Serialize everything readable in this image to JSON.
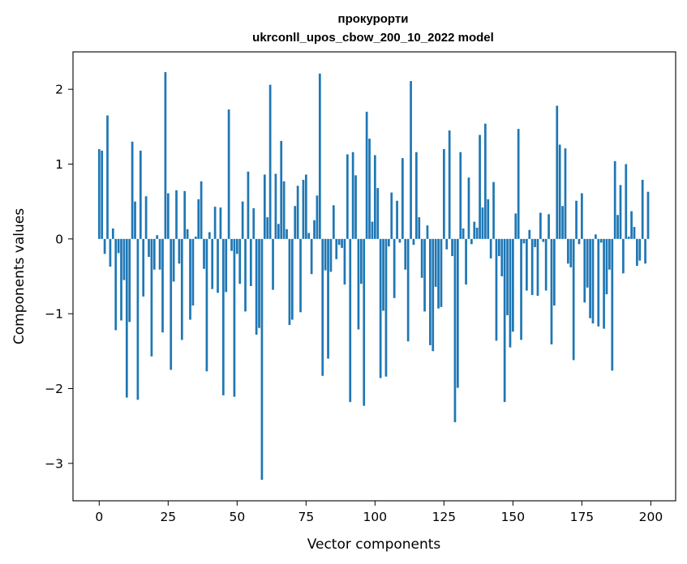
{
  "chart_data": {
    "type": "bar",
    "title": "прокурорти",
    "subtitle": "ukrconll_upos_cbow_200_10_2022 model",
    "xlabel": "Vector components",
    "ylabel": "Components values",
    "xlim": [
      -9.5,
      209
    ],
    "ylim": [
      -3.5,
      2.5
    ],
    "xticks": [
      0,
      25,
      50,
      75,
      100,
      125,
      150,
      175,
      200
    ],
    "yticks": [
      -3,
      -2,
      -1,
      0,
      1,
      2
    ],
    "ytick_labels": [
      "−3",
      "−2",
      "−1",
      "0",
      "1",
      "2"
    ],
    "bar_color": "#1f77b4",
    "grid": false,
    "x": [
      0,
      1,
      2,
      3,
      4,
      5,
      6,
      7,
      8,
      9,
      10,
      11,
      12,
      13,
      14,
      15,
      16,
      17,
      18,
      19,
      20,
      21,
      22,
      23,
      24,
      25,
      26,
      27,
      28,
      29,
      30,
      31,
      32,
      33,
      34,
      35,
      36,
      37,
      38,
      39,
      40,
      41,
      42,
      43,
      44,
      45,
      46,
      47,
      48,
      49,
      50,
      51,
      52,
      53,
      54,
      55,
      56,
      57,
      58,
      59,
      60,
      61,
      62,
      63,
      64,
      65,
      66,
      67,
      68,
      69,
      70,
      71,
      72,
      73,
      74,
      75,
      76,
      77,
      78,
      79,
      80,
      81,
      82,
      83,
      84,
      85,
      86,
      87,
      88,
      89,
      90,
      91,
      92,
      93,
      94,
      95,
      96,
      97,
      98,
      99,
      100,
      101,
      102,
      103,
      104,
      105,
      106,
      107,
      108,
      109,
      110,
      111,
      112,
      113,
      114,
      115,
      116,
      117,
      118,
      119,
      120,
      121,
      122,
      123,
      124,
      125,
      126,
      127,
      128,
      129,
      130,
      131,
      132,
      133,
      134,
      135,
      136,
      137,
      138,
      139,
      140,
      141,
      142,
      143,
      144,
      145,
      146,
      147,
      148,
      149,
      150,
      151,
      152,
      153,
      154,
      155,
      156,
      157,
      158,
      159,
      160,
      161,
      162,
      163,
      164,
      165,
      166,
      167,
      168,
      169,
      170,
      171,
      172,
      173,
      174,
      175,
      176,
      177,
      178,
      179,
      180,
      181,
      182,
      183,
      184,
      185,
      186,
      187,
      188,
      189,
      190,
      191,
      192,
      193,
      194,
      195,
      196,
      197,
      198,
      199
    ],
    "values": [
      1.2,
      1.18,
      -0.2,
      1.65,
      -0.37,
      0.14,
      -1.22,
      -0.19,
      -1.09,
      -0.55,
      -2.12,
      -1.11,
      1.3,
      0.5,
      -2.15,
      1.18,
      -0.77,
      0.57,
      -0.24,
      -1.57,
      -0.41,
      0.05,
      -0.41,
      -1.25,
      2.23,
      0.61,
      -1.75,
      -0.57,
      0.65,
      -0.33,
      -1.35,
      0.64,
      0.13,
      -1.08,
      -0.89,
      0.03,
      0.53,
      0.77,
      -0.4,
      -1.77,
      0.09,
      -0.67,
      0.43,
      -0.72,
      0.42,
      -2.09,
      -0.71,
      1.73,
      -0.16,
      -2.11,
      -0.2,
      -0.6,
      0.5,
      -0.97,
      0.9,
      -0.63,
      0.41,
      -1.28,
      -1.19,
      -3.22,
      0.86,
      0.29,
      2.06,
      -0.68,
      0.87,
      0.2,
      1.31,
      0.77,
      0.13,
      -1.15,
      -1.08,
      0.44,
      0.71,
      -0.98,
      0.79,
      0.86,
      0.08,
      -0.47,
      0.25,
      0.58,
      2.21,
      -1.83,
      -0.42,
      -1.6,
      -0.44,
      0.45,
      -0.27,
      -0.08,
      -0.12,
      -0.61,
      1.13,
      -2.18,
      1.16,
      0.85,
      -1.21,
      -0.6,
      -2.23,
      1.7,
      1.34,
      0.23,
      1.12,
      0.68,
      -1.86,
      -0.96,
      -1.84,
      -0.1,
      0.62,
      -0.79,
      0.51,
      -0.05,
      1.08,
      -0.41,
      -1.37,
      2.11,
      -0.08,
      1.16,
      0.29,
      -0.52,
      -0.97,
      0.18,
      -1.42,
      -1.5,
      -0.64,
      -0.93,
      -0.91,
      1.2,
      -0.14,
      1.45,
      -0.23,
      -2.45,
      -1.99,
      1.16,
      0.14,
      -0.61,
      0.82,
      -0.07,
      0.23,
      0.15,
      1.39,
      0.42,
      1.54,
      0.53,
      -0.26,
      0.76,
      -1.36,
      -0.23,
      -0.5,
      -2.18,
      -1.02,
      -1.45,
      -1.24,
      0.34,
      1.47,
      -1.35,
      -0.06,
      -0.69,
      0.12,
      -0.75,
      -0.11,
      -0.76,
      0.35,
      -0.04,
      -0.69,
      0.33,
      -1.41,
      -0.89,
      1.78,
      1.26,
      0.44,
      1.21,
      -0.33,
      -0.38,
      -1.62,
      0.51,
      -0.07,
      0.61,
      -0.85,
      -0.65,
      -1.06,
      -1.13,
      0.06,
      -1.17,
      -0.05,
      -1.2,
      -0.74,
      -0.41,
      -1.76,
      1.04,
      0.32,
      0.72,
      -0.46,
      1.0,
      0.03,
      0.37,
      0.16,
      -0.36,
      -0.29,
      0.79,
      -0.33,
      0.63
    ]
  }
}
